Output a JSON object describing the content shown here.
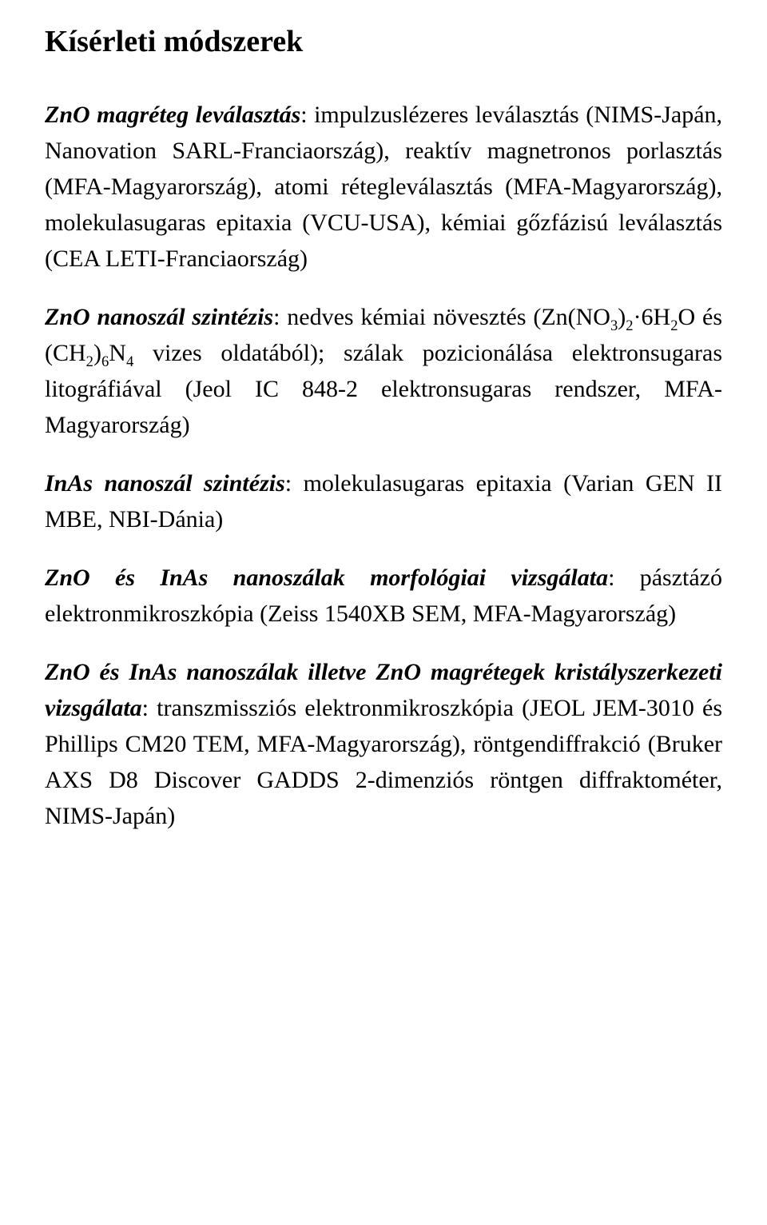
{
  "title": "Kísérleti módszerek",
  "sections": [
    {
      "label": "ZnO magréteg leválasztás",
      "text": ": impulzuslézeres leválasztás (NIMS-Japán, Nanovation SARL-Franciaország), reaktív magnetronos porlasztás (MFA-Magyarország), atomi rétegleválasztás (MFA-Magyarország), molekulasugaras epitaxia (VCU-USA), kémiai gőzfázisú leválasztás (CEA LETI-Franciaország)"
    },
    {
      "label": "ZnO nanoszál szintézis",
      "pre": ": nedves kémiai növesztés (Zn(NO",
      "post": " vizes oldatából); szálak pozicionálása elektronsugaras litográfiával (Jeol IC 848-2 elektronsugaras rendszer, MFA-Magyarország)"
    },
    {
      "label": "InAs nanoszál szintézis",
      "text": ": molekulasugaras epitaxia (Varian GEN II MBE, NBI-Dánia)"
    },
    {
      "label": "ZnO és InAs nanoszálak morfológiai vizsgálata",
      "text": ": pásztázó elektronmikroszkópia (Zeiss 1540XB SEM, MFA-Magyarország)"
    },
    {
      "label": "ZnO és InAs nanoszálak illetve ZnO magrétegek kristály­szerkezeti vizsgálata",
      "text": ": transzmissziós elektronmikroszkópia (JEOL JEM-3010 és Phillips CM20 TEM, MFA-Magyarország), röntgendiffrakció (Bruker AXS D8 Discover GADDS 2-dimenziós röntgen diffraktométer, NIMS-Japán)"
    }
  ],
  "formula": {
    "s1": "3",
    "s2": ")",
    "s3": "2",
    "s4": "·6H",
    "s5": "2",
    "s6": "O és (CH",
    "s7": "2",
    "s8": ")",
    "s9": "6",
    "s10": "N",
    "s11": "4"
  }
}
